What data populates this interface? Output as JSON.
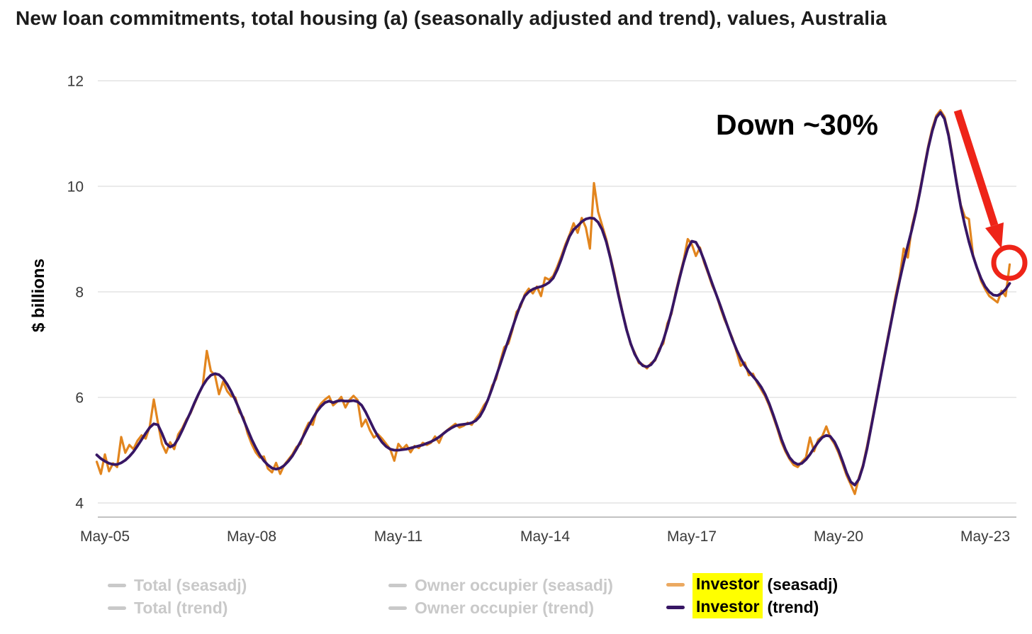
{
  "title": "New loan commitments, total housing (a) (seasonally adjusted and trend), values, Australia",
  "annotation": {
    "text": "Down ~30%",
    "color": "#EE2418"
  },
  "legend": {
    "muted_color": "#C9C9C9",
    "highlight_color": "#FFFF00",
    "items": {
      "total_seasadj": "Total (seasadj)",
      "total_trend": "Total (trend)",
      "owner_seasadj": "Owner occupier (seasadj)",
      "owner_trend": "Owner occupier (trend)",
      "investor": "Investor",
      "investor_seasadj_suffix": "(seasadj)",
      "investor_trend_suffix": "(trend)"
    }
  },
  "chart_data": {
    "type": "line",
    "title": "New loan commitments, total housing (a) (seasonally adjusted and trend), values, Australia",
    "xlabel": "",
    "ylabel": "$ billions",
    "ylim": [
      3.6,
      12.4
    ],
    "grid": "horizontal",
    "legend_position": "bottom",
    "x_frequency": "monthly",
    "x_start": "2005-03",
    "x_end": "2023-11",
    "x_tick_labels": [
      "May-05",
      "May-08",
      "May-11",
      "May-14",
      "May-17",
      "May-20",
      "May-23"
    ],
    "y_ticks": [
      4,
      6,
      8,
      10,
      12
    ],
    "y_tick_labels": [
      "4",
      "6",
      "8",
      "10",
      "12"
    ],
    "hidden_series": [
      "Total (seasadj)",
      "Total (trend)",
      "Owner occupier (seasadj)",
      "Owner occupier (trend)"
    ],
    "annotation": {
      "text": "Down ~30%",
      "peak_value": 11.4,
      "latest_value": 8.5
    },
    "series": [
      {
        "name": "Investor (seasadj)",
        "color": "#E2851E",
        "values": [
          4.78,
          4.55,
          4.92,
          4.6,
          4.75,
          4.68,
          5.25,
          4.95,
          5.1,
          5.02,
          5.18,
          5.28,
          5.22,
          5.45,
          5.96,
          5.52,
          5.12,
          4.95,
          5.15,
          5.02,
          5.3,
          5.42,
          5.58,
          5.7,
          5.88,
          6.06,
          6.22,
          6.88,
          6.5,
          6.42,
          6.06,
          6.3,
          6.12,
          6.02,
          6.0,
          5.72,
          5.62,
          5.32,
          5.12,
          4.96,
          4.86,
          4.88,
          4.65,
          4.58,
          4.76,
          4.55,
          4.72,
          4.82,
          4.92,
          5.06,
          5.12,
          5.36,
          5.52,
          5.48,
          5.76,
          5.88,
          5.96,
          6.02,
          5.85,
          5.92,
          6.01,
          5.81,
          5.95,
          6.03,
          5.95,
          5.45,
          5.58,
          5.38,
          5.24,
          5.3,
          5.22,
          5.12,
          5.02,
          4.8,
          5.12,
          5.02,
          5.1,
          4.96,
          5.08,
          5.04,
          5.14,
          5.1,
          5.14,
          5.26,
          5.14,
          5.32,
          5.38,
          5.44,
          5.5,
          5.43,
          5.46,
          5.52,
          5.48,
          5.6,
          5.7,
          5.85,
          5.95,
          6.22,
          6.35,
          6.68,
          6.95,
          7.02,
          7.28,
          7.62,
          7.72,
          7.95,
          8.06,
          7.97,
          8.1,
          7.92,
          8.27,
          8.23,
          8.3,
          8.48,
          8.68,
          8.9,
          9.08,
          9.3,
          9.12,
          9.4,
          9.22,
          8.82,
          10.06,
          9.52,
          9.26,
          9.0,
          8.68,
          8.35,
          7.98,
          7.62,
          7.3,
          7.0,
          6.85,
          6.65,
          6.62,
          6.55,
          6.65,
          6.7,
          6.92,
          7.02,
          7.4,
          7.58,
          7.98,
          8.3,
          8.6,
          9.0,
          8.9,
          8.68,
          8.84,
          8.56,
          8.35,
          8.12,
          7.95,
          7.7,
          7.48,
          7.3,
          7.12,
          6.86,
          6.6,
          6.66,
          6.42,
          6.45,
          6.28,
          6.15,
          6.02,
          5.84,
          5.63,
          5.4,
          5.15,
          4.97,
          4.83,
          4.72,
          4.68,
          4.78,
          4.86,
          5.24,
          4.98,
          5.2,
          5.26,
          5.45,
          5.24,
          5.12,
          4.95,
          4.74,
          4.52,
          4.35,
          4.17,
          4.48,
          4.72,
          5.08,
          5.47,
          5.88,
          6.28,
          6.7,
          7.1,
          7.5,
          7.92,
          8.28,
          8.82,
          8.65,
          9.24,
          9.56,
          9.94,
          10.36,
          10.76,
          11.1,
          11.34,
          11.44,
          11.32,
          11.0,
          10.56,
          10.08,
          9.65,
          9.42,
          9.38,
          8.7,
          8.45,
          8.2,
          8.05,
          7.92,
          7.86,
          7.8,
          8.02,
          7.92,
          8.52
        ]
      },
      {
        "name": "Investor (trend)",
        "color": "#371664",
        "values": [
          4.91,
          4.84,
          4.79,
          4.75,
          4.73,
          4.73,
          4.76,
          4.81,
          4.88,
          4.97,
          5.08,
          5.2,
          5.32,
          5.43,
          5.5,
          5.48,
          5.32,
          5.13,
          5.06,
          5.1,
          5.22,
          5.38,
          5.55,
          5.72,
          5.9,
          6.07,
          6.22,
          6.34,
          6.42,
          6.45,
          6.43,
          6.36,
          6.25,
          6.11,
          5.95,
          5.77,
          5.58,
          5.39,
          5.21,
          5.05,
          4.91,
          4.8,
          4.72,
          4.66,
          4.64,
          4.66,
          4.71,
          4.79,
          4.89,
          5.02,
          5.16,
          5.31,
          5.46,
          5.6,
          5.73,
          5.83,
          5.9,
          5.93,
          5.9,
          5.93,
          5.94,
          5.93,
          5.93,
          5.94,
          5.92,
          5.85,
          5.72,
          5.56,
          5.4,
          5.26,
          5.15,
          5.07,
          5.02,
          5.0,
          5.0,
          5.01,
          5.02,
          5.04,
          5.06,
          5.08,
          5.1,
          5.13,
          5.16,
          5.2,
          5.25,
          5.31,
          5.37,
          5.42,
          5.46,
          5.48,
          5.49,
          5.5,
          5.52,
          5.56,
          5.64,
          5.78,
          5.96,
          6.17,
          6.4,
          6.63,
          6.86,
          7.09,
          7.32,
          7.55,
          7.76,
          7.92,
          8.0,
          8.05,
          8.08,
          8.1,
          8.13,
          8.18,
          8.26,
          8.42,
          8.62,
          8.85,
          9.05,
          9.18,
          9.25,
          9.33,
          9.38,
          9.4,
          9.39,
          9.32,
          9.18,
          8.95,
          8.65,
          8.3,
          7.94,
          7.6,
          7.28,
          7.02,
          6.82,
          6.68,
          6.6,
          6.58,
          6.62,
          6.72,
          6.88,
          7.08,
          7.33,
          7.62,
          7.94,
          8.26,
          8.56,
          8.82,
          8.96,
          8.94,
          8.8,
          8.6,
          8.38,
          8.16,
          7.95,
          7.74,
          7.52,
          7.3,
          7.09,
          6.9,
          6.74,
          6.6,
          6.49,
          6.4,
          6.31,
          6.2,
          6.06,
          5.88,
          5.67,
          5.44,
          5.21,
          5.01,
          4.86,
          4.77,
          4.73,
          4.75,
          4.82,
          4.92,
          5.04,
          5.15,
          5.24,
          5.28,
          5.26,
          5.16,
          5.0,
          4.79,
          4.57,
          4.4,
          4.34,
          4.45,
          4.69,
          5.03,
          5.43,
          5.84,
          6.25,
          6.66,
          7.06,
          7.46,
          7.85,
          8.22,
          8.56,
          8.88,
          9.18,
          9.52,
          9.9,
          10.32,
          10.72,
          11.05,
          11.3,
          11.4,
          11.28,
          10.96,
          10.52,
          10.05,
          9.62,
          9.26,
          8.95,
          8.68,
          8.45,
          8.25,
          8.1,
          8.0,
          7.94,
          7.93,
          7.97,
          8.05,
          8.16
        ]
      }
    ]
  }
}
